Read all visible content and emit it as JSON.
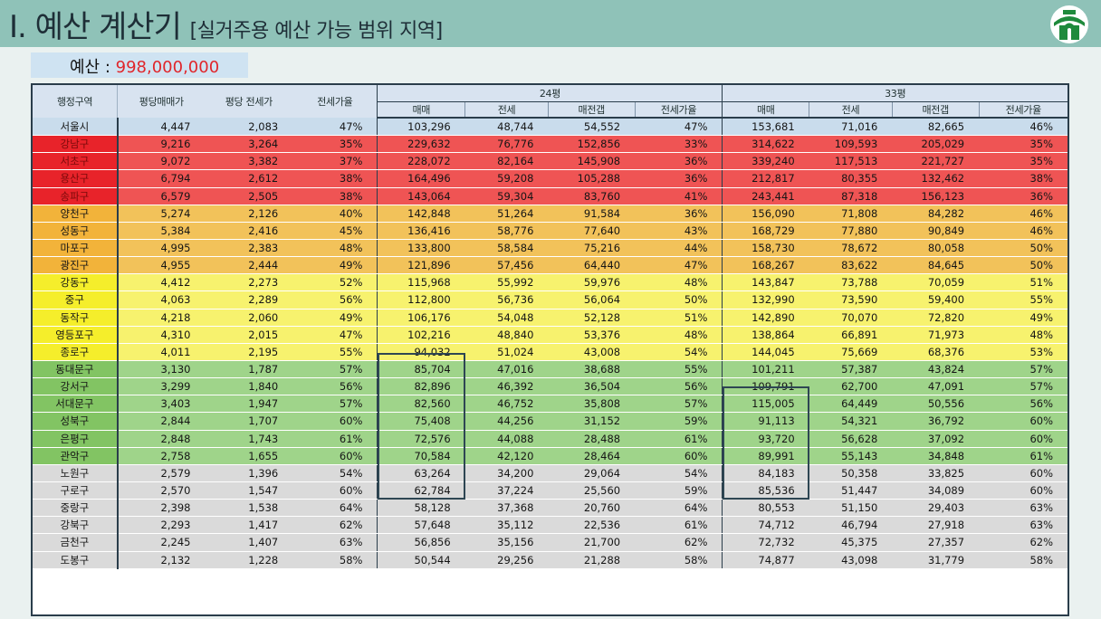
{
  "header": {
    "title": "I. 예산 계산기",
    "subtitle": "[실거주용 예산 가능 범위 지역]"
  },
  "budget": {
    "label": "예산 : ",
    "value": "998,000,000"
  },
  "colors": {
    "title_bar": "#8fc2b8",
    "budget_value": "#e0262b",
    "logo_green": "#1f8a3c",
    "tiers": {
      "blue": "#c9dcec",
      "red": "#ef5454",
      "orange": "#f2c25a",
      "yellow": "#f7f26e",
      "green": "#9fd48a",
      "gray": "#dadada"
    },
    "name_tiers": {
      "blue": "#c9dcec",
      "red": "#e8232a",
      "orange": "#f2b33a",
      "yellow": "#f5ee2b",
      "green": "#82c463",
      "gray": "#dadada"
    }
  },
  "table": {
    "col_district": "행정구역",
    "col_sale_per_pyeong": "평당매매가",
    "col_jeonse_per_pyeong": "평당 전세가",
    "col_jeonse_ratio": "전세가율",
    "group_24": "24평",
    "group_33": "33평",
    "sub_headers": [
      "매매",
      "전세",
      "매전갭",
      "전세가율"
    ],
    "rows": [
      {
        "tier": "blue",
        "cells": [
          "서울시",
          "4,447",
          "2,083",
          "47%",
          "103,296",
          "48,744",
          "54,552",
          "47%",
          "153,681",
          "71,016",
          "82,665",
          "46%"
        ]
      },
      {
        "tier": "red",
        "cells": [
          "강남구",
          "9,216",
          "3,264",
          "35%",
          "229,632",
          "76,776",
          "152,856",
          "33%",
          "314,622",
          "109,593",
          "205,029",
          "35%"
        ]
      },
      {
        "tier": "red",
        "cells": [
          "서초구",
          "9,072",
          "3,382",
          "37%",
          "228,072",
          "82,164",
          "145,908",
          "36%",
          "339,240",
          "117,513",
          "221,727",
          "35%"
        ]
      },
      {
        "tier": "red",
        "cells": [
          "용산구",
          "6,794",
          "2,612",
          "38%",
          "164,496",
          "59,208",
          "105,288",
          "36%",
          "212,817",
          "80,355",
          "132,462",
          "38%"
        ]
      },
      {
        "tier": "red",
        "cells": [
          "송파구",
          "6,579",
          "2,505",
          "38%",
          "143,064",
          "59,304",
          "83,760",
          "41%",
          "243,441",
          "87,318",
          "156,123",
          "36%"
        ]
      },
      {
        "tier": "orange",
        "cells": [
          "양천구",
          "5,274",
          "2,126",
          "40%",
          "142,848",
          "51,264",
          "91,584",
          "36%",
          "156,090",
          "71,808",
          "84,282",
          "46%"
        ]
      },
      {
        "tier": "orange",
        "cells": [
          "성동구",
          "5,384",
          "2,416",
          "45%",
          "136,416",
          "58,776",
          "77,640",
          "43%",
          "168,729",
          "77,880",
          "90,849",
          "46%"
        ]
      },
      {
        "tier": "orange",
        "cells": [
          "마포구",
          "4,995",
          "2,383",
          "48%",
          "133,800",
          "58,584",
          "75,216",
          "44%",
          "158,730",
          "78,672",
          "80,058",
          "50%"
        ]
      },
      {
        "tier": "orange",
        "cells": [
          "광진구",
          "4,955",
          "2,444",
          "49%",
          "121,896",
          "57,456",
          "64,440",
          "47%",
          "168,267",
          "83,622",
          "84,645",
          "50%"
        ]
      },
      {
        "tier": "yellow",
        "cells": [
          "강동구",
          "4,412",
          "2,273",
          "52%",
          "115,968",
          "55,992",
          "59,976",
          "48%",
          "143,847",
          "73,788",
          "70,059",
          "51%"
        ]
      },
      {
        "tier": "yellow",
        "cells": [
          "중구",
          "4,063",
          "2,289",
          "56%",
          "112,800",
          "56,736",
          "56,064",
          "50%",
          "132,990",
          "73,590",
          "59,400",
          "55%"
        ]
      },
      {
        "tier": "yellow",
        "cells": [
          "동작구",
          "4,218",
          "2,060",
          "49%",
          "106,176",
          "54,048",
          "52,128",
          "51%",
          "142,890",
          "70,070",
          "72,820",
          "49%"
        ]
      },
      {
        "tier": "yellow",
        "cells": [
          "영등포구",
          "4,310",
          "2,015",
          "47%",
          "102,216",
          "48,840",
          "53,376",
          "48%",
          "138,864",
          "66,891",
          "71,973",
          "48%"
        ]
      },
      {
        "tier": "yellow",
        "cells": [
          "종로구",
          "4,011",
          "2,195",
          "55%",
          "94,032",
          "51,024",
          "43,008",
          "54%",
          "144,045",
          "75,669",
          "68,376",
          "53%"
        ]
      },
      {
        "tier": "green",
        "cells": [
          "동대문구",
          "3,130",
          "1,787",
          "57%",
          "85,704",
          "47,016",
          "38,688",
          "55%",
          "101,211",
          "57,387",
          "43,824",
          "57%"
        ]
      },
      {
        "tier": "green",
        "cells": [
          "강서구",
          "3,299",
          "1,840",
          "56%",
          "82,896",
          "46,392",
          "36,504",
          "56%",
          "109,791",
          "62,700",
          "47,091",
          "57%"
        ]
      },
      {
        "tier": "green",
        "cells": [
          "서대문구",
          "3,403",
          "1,947",
          "57%",
          "82,560",
          "46,752",
          "35,808",
          "57%",
          "115,005",
          "64,449",
          "50,556",
          "56%"
        ]
      },
      {
        "tier": "green",
        "cells": [
          "성북구",
          "2,844",
          "1,707",
          "60%",
          "75,408",
          "44,256",
          "31,152",
          "59%",
          "91,113",
          "54,321",
          "36,792",
          "60%"
        ]
      },
      {
        "tier": "green",
        "cells": [
          "은평구",
          "2,848",
          "1,743",
          "61%",
          "72,576",
          "44,088",
          "28,488",
          "61%",
          "93,720",
          "56,628",
          "37,092",
          "60%"
        ]
      },
      {
        "tier": "green",
        "cells": [
          "관악구",
          "2,758",
          "1,655",
          "60%",
          "70,584",
          "42,120",
          "28,464",
          "60%",
          "89,991",
          "55,143",
          "34,848",
          "61%"
        ]
      },
      {
        "tier": "gray",
        "cells": [
          "노원구",
          "2,579",
          "1,396",
          "54%",
          "63,264",
          "34,200",
          "29,064",
          "54%",
          "84,183",
          "50,358",
          "33,825",
          "60%"
        ]
      },
      {
        "tier": "gray",
        "cells": [
          "구로구",
          "2,570",
          "1,547",
          "60%",
          "62,784",
          "37,224",
          "25,560",
          "59%",
          "85,536",
          "51,447",
          "34,089",
          "60%"
        ]
      },
      {
        "tier": "gray",
        "cells": [
          "중랑구",
          "2,398",
          "1,538",
          "64%",
          "58,128",
          "37,368",
          "20,760",
          "64%",
          "80,553",
          "51,150",
          "29,403",
          "63%"
        ]
      },
      {
        "tier": "gray",
        "cells": [
          "강북구",
          "2,293",
          "1,417",
          "62%",
          "57,648",
          "35,112",
          "22,536",
          "61%",
          "74,712",
          "46,794",
          "27,918",
          "63%"
        ]
      },
      {
        "tier": "gray",
        "cells": [
          "금천구",
          "2,245",
          "1,407",
          "63%",
          "56,856",
          "35,156",
          "21,700",
          "62%",
          "72,732",
          "45,375",
          "27,357",
          "62%"
        ]
      },
      {
        "tier": "gray",
        "cells": [
          "도봉구",
          "2,132",
          "1,228",
          "58%",
          "50,544",
          "29,256",
          "21,288",
          "58%",
          "74,877",
          "43,098",
          "31,779",
          "58%"
        ]
      }
    ]
  }
}
